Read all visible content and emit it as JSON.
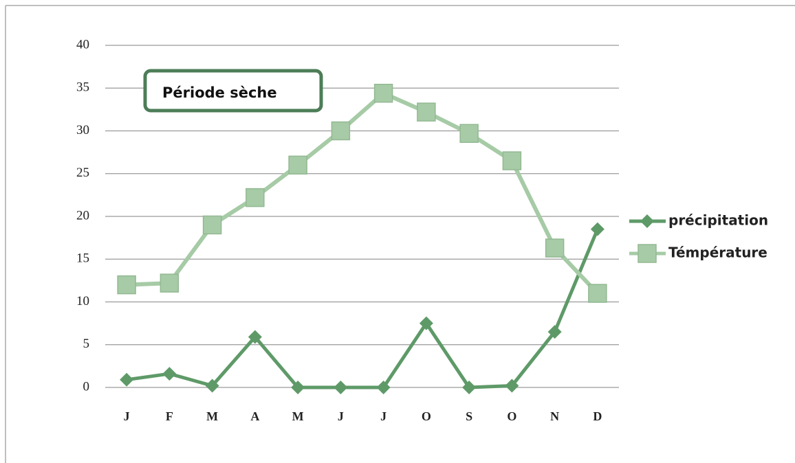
{
  "chart_data": {
    "type": "line",
    "annotation": "Période sèche",
    "categories": [
      "J",
      "F",
      "M",
      "A",
      "M",
      "J",
      "J",
      "O",
      "S",
      "O",
      "N",
      "D"
    ],
    "series": [
      {
        "name": "précipitation",
        "color": "#5e9a68",
        "marker": "diamond",
        "values": [
          0.9,
          1.6,
          0.2,
          5.9,
          0,
          0,
          0,
          7.5,
          0,
          0.2,
          6.5,
          18.5
        ]
      },
      {
        "name": "Témpérature",
        "color": "#a6cba6",
        "marker": "square",
        "values": [
          12,
          12.2,
          19,
          22.2,
          26,
          30,
          34.4,
          32.2,
          29.7,
          26.5,
          16.3,
          11
        ]
      }
    ],
    "ylim": [
      0,
      40
    ],
    "yticks": [
      0,
      5,
      10,
      15,
      20,
      25,
      30,
      35,
      40
    ],
    "grid": true,
    "legend": "right"
  }
}
